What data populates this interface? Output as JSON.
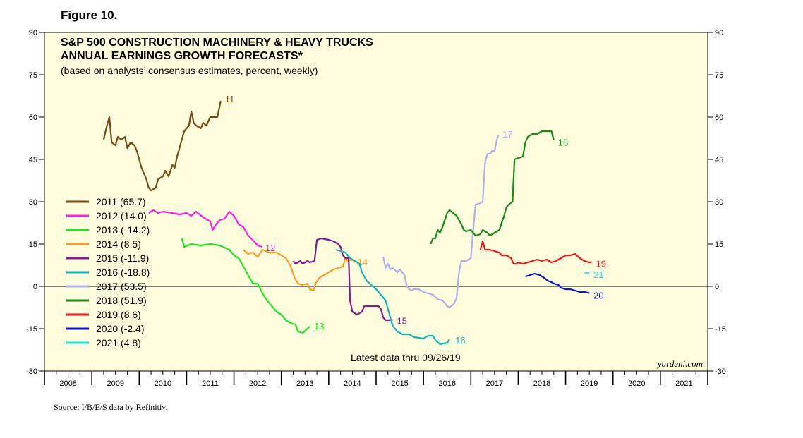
{
  "figure_label": "Figure 10.",
  "source": "Source: I/B/E/S data by Refinitiv.",
  "chart_data": {
    "type": "line",
    "title": "S&P 500 CONSTRUCTION MACHINERY & HEAVY TRUCKS",
    "title2": "ANNUAL EARNINGS GROWTH FORECASTS*",
    "subtitle": "(based on analysts’ consensus estimates, percent, weekly)",
    "annotation": "Latest data thru 09/26/19",
    "watermark": "yardeni.com",
    "ylim": [
      -30,
      90
    ],
    "yticks": [
      -30,
      -15,
      0,
      15,
      30,
      45,
      60,
      75,
      90
    ],
    "xlim": [
      2008,
      2022
    ],
    "xticklabels": [
      "2008",
      "2009",
      "2010",
      "2011",
      "2012",
      "2013",
      "2014",
      "2015",
      "2016",
      "2017",
      "2018",
      "2019",
      "2020",
      "2021"
    ],
    "grid": false,
    "zero_line": true,
    "legend_position": "left",
    "series": [
      {
        "name": "2011 (65.7)",
        "end_label": "11",
        "color": "#7b4a12",
        "points": [
          [
            2009.25,
            52
          ],
          [
            2009.32,
            57
          ],
          [
            2009.37,
            60
          ],
          [
            2009.42,
            51
          ],
          [
            2009.5,
            50
          ],
          [
            2009.55,
            53
          ],
          [
            2009.62,
            52
          ],
          [
            2009.7,
            53
          ],
          [
            2009.75,
            49
          ],
          [
            2009.82,
            51
          ],
          [
            2009.9,
            50
          ],
          [
            2009.95,
            48
          ],
          [
            2010.0,
            45
          ],
          [
            2010.05,
            42
          ],
          [
            2010.1,
            40
          ],
          [
            2010.15,
            38
          ],
          [
            2010.2,
            35
          ],
          [
            2010.25,
            34
          ],
          [
            2010.35,
            35
          ],
          [
            2010.4,
            38
          ],
          [
            2010.5,
            39
          ],
          [
            2010.55,
            41
          ],
          [
            2010.62,
            39
          ],
          [
            2010.7,
            43
          ],
          [
            2010.75,
            42
          ],
          [
            2010.8,
            46
          ],
          [
            2010.9,
            52
          ],
          [
            2010.95,
            55
          ],
          [
            2011.05,
            57
          ],
          [
            2011.1,
            62
          ],
          [
            2011.15,
            58
          ],
          [
            2011.2,
            57
          ],
          [
            2011.3,
            56
          ],
          [
            2011.35,
            58
          ],
          [
            2011.42,
            57
          ],
          [
            2011.5,
            60
          ],
          [
            2011.65,
            60
          ],
          [
            2011.72,
            65.7
          ]
        ]
      },
      {
        "name": "2012 (14.0)",
        "end_label": "12",
        "color": "#ff1ee6",
        "points": [
          [
            2010.2,
            26
          ],
          [
            2010.3,
            27
          ],
          [
            2010.4,
            26
          ],
          [
            2010.5,
            26.5
          ],
          [
            2010.7,
            26
          ],
          [
            2010.85,
            25.5
          ],
          [
            2011.0,
            26
          ],
          [
            2011.1,
            25
          ],
          [
            2011.2,
            26.5
          ],
          [
            2011.35,
            24.5
          ],
          [
            2011.5,
            23
          ],
          [
            2011.55,
            20
          ],
          [
            2011.62,
            22
          ],
          [
            2011.7,
            23.5
          ],
          [
            2011.8,
            24
          ],
          [
            2011.9,
            26.5
          ],
          [
            2012.0,
            25
          ],
          [
            2012.1,
            22
          ],
          [
            2012.2,
            21
          ],
          [
            2012.3,
            18
          ],
          [
            2012.42,
            16
          ],
          [
            2012.5,
            14.5
          ],
          [
            2012.6,
            14
          ]
        ]
      },
      {
        "name": "2013 (-14.2)",
        "end_label": "13",
        "color": "#22e622",
        "points": [
          [
            2010.9,
            17
          ],
          [
            2010.95,
            14
          ],
          [
            2011.1,
            15
          ],
          [
            2011.3,
            14.5
          ],
          [
            2011.5,
            15
          ],
          [
            2011.7,
            14.5
          ],
          [
            2011.9,
            13
          ],
          [
            2012.0,
            11
          ],
          [
            2012.1,
            10
          ],
          [
            2012.2,
            7
          ],
          [
            2012.3,
            4
          ],
          [
            2012.4,
            1
          ],
          [
            2012.5,
            1
          ],
          [
            2012.62,
            -3
          ],
          [
            2012.7,
            -5
          ],
          [
            2012.8,
            -7
          ],
          [
            2012.9,
            -9
          ],
          [
            2013.0,
            -10
          ],
          [
            2013.1,
            -12
          ],
          [
            2013.2,
            -13
          ],
          [
            2013.3,
            -13.5
          ],
          [
            2013.35,
            -16
          ],
          [
            2013.45,
            -16.5
          ],
          [
            2013.55,
            -15
          ],
          [
            2013.6,
            -14.2
          ]
        ]
      },
      {
        "name": "2014 (8.5)",
        "end_label": "14",
        "color": "#ff9a28",
        "points": [
          [
            2012.2,
            13
          ],
          [
            2012.3,
            11.5
          ],
          [
            2012.4,
            12
          ],
          [
            2012.5,
            10.5
          ],
          [
            2012.6,
            13
          ],
          [
            2012.75,
            12
          ],
          [
            2012.9,
            12
          ],
          [
            2013.0,
            11
          ],
          [
            2013.1,
            10
          ],
          [
            2013.2,
            7
          ],
          [
            2013.28,
            3
          ],
          [
            2013.35,
            1
          ],
          [
            2013.45,
            0.5
          ],
          [
            2013.55,
            1
          ],
          [
            2013.6,
            -1
          ],
          [
            2013.68,
            -1.5
          ],
          [
            2013.72,
            1
          ],
          [
            2013.8,
            3
          ],
          [
            2013.9,
            4
          ],
          [
            2014.0,
            5
          ],
          [
            2014.1,
            6
          ],
          [
            2014.2,
            6.5
          ],
          [
            2014.3,
            7
          ],
          [
            2014.35,
            10
          ],
          [
            2014.4,
            9
          ],
          [
            2014.5,
            9.5
          ],
          [
            2014.55,
            8.5
          ]
        ]
      },
      {
        "name": "2015 (-11.9)",
        "end_label": "15",
        "color": "#8a1a8a",
        "points": [
          [
            2013.25,
            9
          ],
          [
            2013.3,
            8
          ],
          [
            2013.4,
            9
          ],
          [
            2013.45,
            8
          ],
          [
            2013.55,
            9
          ],
          [
            2013.6,
            8.5
          ],
          [
            2013.7,
            9
          ],
          [
            2013.75,
            16.5
          ],
          [
            2013.85,
            17
          ],
          [
            2014.0,
            16.5
          ],
          [
            2014.1,
            16
          ],
          [
            2014.2,
            15
          ],
          [
            2014.25,
            14
          ],
          [
            2014.3,
            11
          ],
          [
            2014.35,
            10
          ],
          [
            2014.42,
            10
          ],
          [
            2014.45,
            -5
          ],
          [
            2014.5,
            -9
          ],
          [
            2014.6,
            -10
          ],
          [
            2014.7,
            -9
          ],
          [
            2014.75,
            -7
          ],
          [
            2014.9,
            -7
          ],
          [
            2015.05,
            -7
          ],
          [
            2015.1,
            -8
          ],
          [
            2015.15,
            -11
          ],
          [
            2015.2,
            -12
          ],
          [
            2015.35,
            -11.9
          ]
        ]
      },
      {
        "name": "2016 (-18.8)",
        "end_label": "16",
        "color": "#1ab3b3",
        "points": [
          [
            2014.15,
            13
          ],
          [
            2014.25,
            12.5
          ],
          [
            2014.35,
            12
          ],
          [
            2014.45,
            10
          ],
          [
            2014.55,
            9
          ],
          [
            2014.65,
            8
          ],
          [
            2014.7,
            5
          ],
          [
            2014.8,
            2
          ],
          [
            2014.9,
            0.5
          ],
          [
            2015.0,
            -1
          ],
          [
            2015.1,
            -3
          ],
          [
            2015.2,
            -5
          ],
          [
            2015.25,
            -8
          ],
          [
            2015.3,
            -11
          ],
          [
            2015.35,
            -14
          ],
          [
            2015.45,
            -16
          ],
          [
            2015.55,
            -17
          ],
          [
            2015.7,
            -17
          ],
          [
            2015.8,
            -18
          ],
          [
            2016.0,
            -18.5
          ],
          [
            2016.1,
            -17.5
          ],
          [
            2016.2,
            -17.5
          ],
          [
            2016.25,
            -19
          ],
          [
            2016.35,
            -20.5
          ],
          [
            2016.5,
            -20
          ],
          [
            2016.55,
            -18.8
          ]
        ]
      },
      {
        "name": "2017 (53.5)",
        "end_label": "17",
        "color": "#b0b0ee",
        "points": [
          [
            2015.15,
            10.5
          ],
          [
            2015.2,
            6.5
          ],
          [
            2015.25,
            8
          ],
          [
            2015.3,
            6
          ],
          [
            2015.35,
            6.5
          ],
          [
            2015.45,
            5
          ],
          [
            2015.5,
            6
          ],
          [
            2015.55,
            5
          ],
          [
            2015.6,
            4
          ],
          [
            2015.65,
            0
          ],
          [
            2015.7,
            -1
          ],
          [
            2015.75,
            -1.5
          ],
          [
            2015.8,
            -1
          ],
          [
            2015.9,
            -1
          ],
          [
            2016.0,
            -2
          ],
          [
            2016.1,
            -2.5
          ],
          [
            2016.2,
            -3
          ],
          [
            2016.3,
            -4.5
          ],
          [
            2016.4,
            -5
          ],
          [
            2016.5,
            -7
          ],
          [
            2016.55,
            -7.5
          ],
          [
            2016.65,
            -6
          ],
          [
            2016.7,
            -4
          ],
          [
            2016.75,
            5
          ],
          [
            2016.8,
            9
          ],
          [
            2016.9,
            9
          ],
          [
            2017.0,
            10
          ],
          [
            2017.05,
            20
          ],
          [
            2017.1,
            29
          ],
          [
            2017.2,
            29.5
          ],
          [
            2017.25,
            30
          ],
          [
            2017.3,
            44
          ],
          [
            2017.35,
            47
          ],
          [
            2017.4,
            47
          ],
          [
            2017.45,
            48
          ],
          [
            2017.5,
            48
          ],
          [
            2017.55,
            52
          ],
          [
            2017.58,
            53.5
          ]
        ]
      },
      {
        "name": "2018 (51.9)",
        "end_label": "18",
        "color": "#1a8a1a",
        "points": [
          [
            2016.15,
            15
          ],
          [
            2016.2,
            17
          ],
          [
            2016.25,
            17
          ],
          [
            2016.3,
            20
          ],
          [
            2016.35,
            19
          ],
          [
            2016.4,
            21
          ],
          [
            2016.5,
            26
          ],
          [
            2016.55,
            27
          ],
          [
            2016.7,
            25
          ],
          [
            2016.8,
            22
          ],
          [
            2016.85,
            20
          ],
          [
            2016.9,
            19.5
          ],
          [
            2017.0,
            20
          ],
          [
            2017.1,
            18
          ],
          [
            2017.2,
            18.5
          ],
          [
            2017.25,
            20
          ],
          [
            2017.35,
            19
          ],
          [
            2017.4,
            18
          ],
          [
            2017.5,
            19
          ],
          [
            2017.6,
            20
          ],
          [
            2017.7,
            25
          ],
          [
            2017.75,
            28
          ],
          [
            2017.8,
            29
          ],
          [
            2017.88,
            30
          ],
          [
            2017.92,
            45
          ],
          [
            2018.0,
            45.5
          ],
          [
            2018.1,
            46
          ],
          [
            2018.15,
            51
          ],
          [
            2018.2,
            53
          ],
          [
            2018.3,
            54
          ],
          [
            2018.4,
            54
          ],
          [
            2018.5,
            55
          ],
          [
            2018.6,
            55
          ],
          [
            2018.7,
            55
          ],
          [
            2018.75,
            51.9
          ]
        ]
      },
      {
        "name": "2019 (8.6)",
        "end_label": "19",
        "color": "#f01818",
        "points": [
          [
            2017.2,
            13
          ],
          [
            2017.25,
            16
          ],
          [
            2017.3,
            13
          ],
          [
            2017.4,
            13
          ],
          [
            2017.5,
            12.5
          ],
          [
            2017.6,
            12
          ],
          [
            2017.65,
            11
          ],
          [
            2017.75,
            11
          ],
          [
            2017.85,
            10
          ],
          [
            2017.9,
            8
          ],
          [
            2017.95,
            8
          ],
          [
            2018.0,
            8.5
          ],
          [
            2018.1,
            8
          ],
          [
            2018.2,
            8.5
          ],
          [
            2018.3,
            9
          ],
          [
            2018.4,
            9.5
          ],
          [
            2018.5,
            9
          ],
          [
            2018.6,
            9.5
          ],
          [
            2018.7,
            8.5
          ],
          [
            2018.8,
            9
          ],
          [
            2018.9,
            10
          ],
          [
            2019.0,
            11
          ],
          [
            2019.1,
            11
          ],
          [
            2019.2,
            11.5
          ],
          [
            2019.3,
            10
          ],
          [
            2019.4,
            9
          ],
          [
            2019.5,
            8.5
          ],
          [
            2019.55,
            8.6
          ]
        ]
      },
      {
        "name": "2020 (-2.4)",
        "end_label": "20",
        "color": "#0a14e0",
        "points": [
          [
            2018.15,
            3.5
          ],
          [
            2018.25,
            4
          ],
          [
            2018.35,
            4.5
          ],
          [
            2018.45,
            4
          ],
          [
            2018.55,
            3
          ],
          [
            2018.62,
            2
          ],
          [
            2018.7,
            1.5
          ],
          [
            2018.75,
            1
          ],
          [
            2018.85,
            0.5
          ],
          [
            2018.9,
            -0.5
          ],
          [
            2019.0,
            -1
          ],
          [
            2019.1,
            -1
          ],
          [
            2019.2,
            -1.5
          ],
          [
            2019.3,
            -2
          ],
          [
            2019.4,
            -2
          ],
          [
            2019.5,
            -2.4
          ]
        ]
      },
      {
        "name": "2021 (4.8)",
        "end_label": "21",
        "color": "#18e6e6",
        "points": [
          [
            2019.4,
            4.8
          ],
          [
            2019.5,
            4.8
          ]
        ]
      }
    ]
  }
}
